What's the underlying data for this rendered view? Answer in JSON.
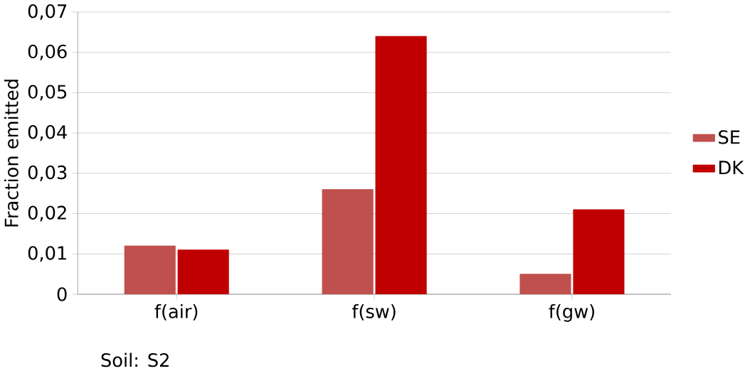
{
  "chart_data": {
    "type": "bar",
    "ylabel": "Fraction emitted",
    "categories": [
      "f(air)",
      "f(sw)",
      "f(gw)"
    ],
    "series": [
      {
        "name": "SE",
        "color": "#c0504d",
        "values": [
          0.012,
          0.026,
          0.005
        ]
      },
      {
        "name": "DK",
        "color": "#c00000",
        "values": [
          0.011,
          0.064,
          0.021
        ]
      }
    ],
    "ylim": [
      0,
      0.07
    ],
    "yticks": [
      {
        "value": 0,
        "label": "0"
      },
      {
        "value": 0.01,
        "label": "0,01"
      },
      {
        "value": 0.02,
        "label": "0,02"
      },
      {
        "value": 0.03,
        "label": "0,03"
      },
      {
        "value": 0.04,
        "label": "0,04"
      },
      {
        "value": 0.05,
        "label": "0,05"
      },
      {
        "value": 0.06,
        "label": "0,06"
      },
      {
        "value": 0.07,
        "label": "0,07"
      }
    ],
    "grid": "y",
    "legend": "right",
    "annotations": [
      "Soil:  S2"
    ]
  }
}
